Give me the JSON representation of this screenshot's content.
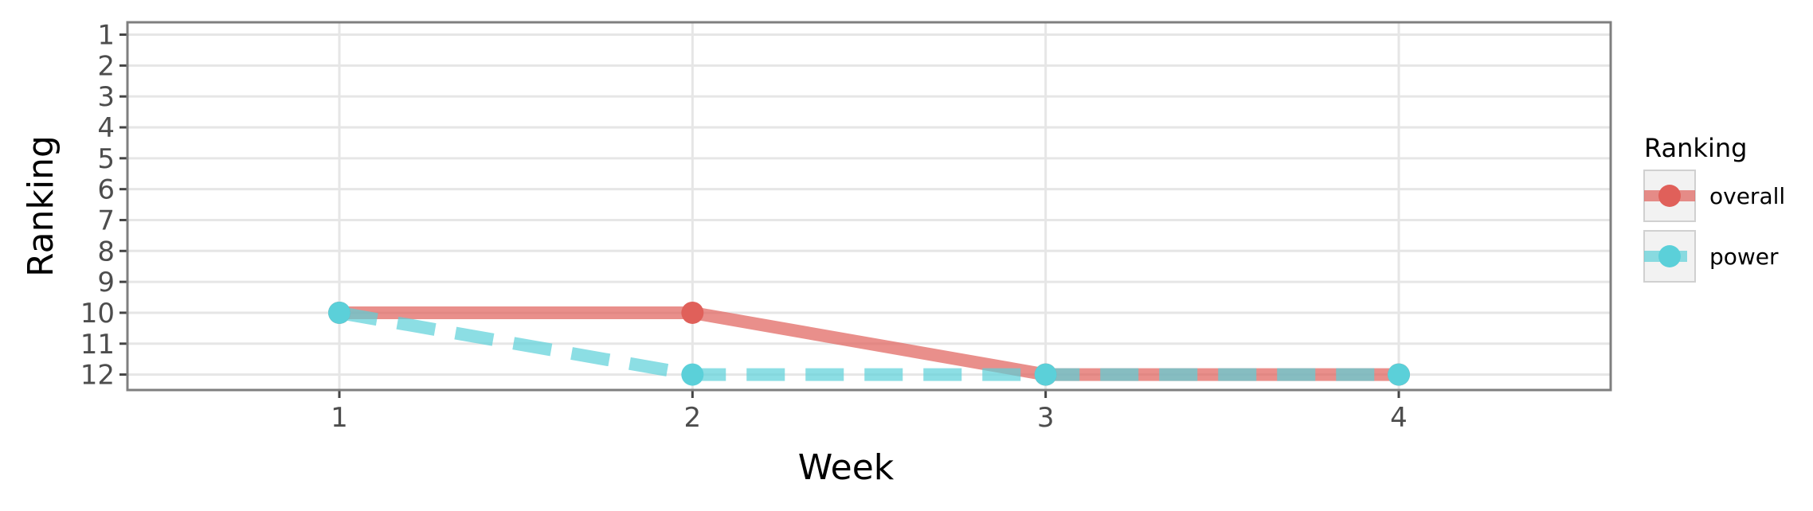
{
  "chart_data": {
    "type": "line",
    "xlabel": "Week",
    "ylabel": "Ranking",
    "x": [
      1,
      2,
      3,
      4
    ],
    "xticks": [
      "1",
      "2",
      "3",
      "4"
    ],
    "xlim": [
      0.4,
      4.6
    ],
    "yticks": [
      "1",
      "2",
      "3",
      "4",
      "5",
      "6",
      "7",
      "8",
      "9",
      "10",
      "11",
      "12"
    ],
    "ylim": [
      0.6,
      12.5
    ],
    "y_reversed": true,
    "grid": true,
    "legend": {
      "title": "Ranking",
      "position": "right"
    },
    "series": [
      {
        "name": "overall",
        "values": [
          10,
          10,
          12,
          12
        ],
        "color": "#e0605a",
        "line_style": "solid"
      },
      {
        "name": "power",
        "values": [
          10,
          12,
          12,
          12
        ],
        "color": "#5bd0d9",
        "line_style": "dashed"
      }
    ]
  }
}
